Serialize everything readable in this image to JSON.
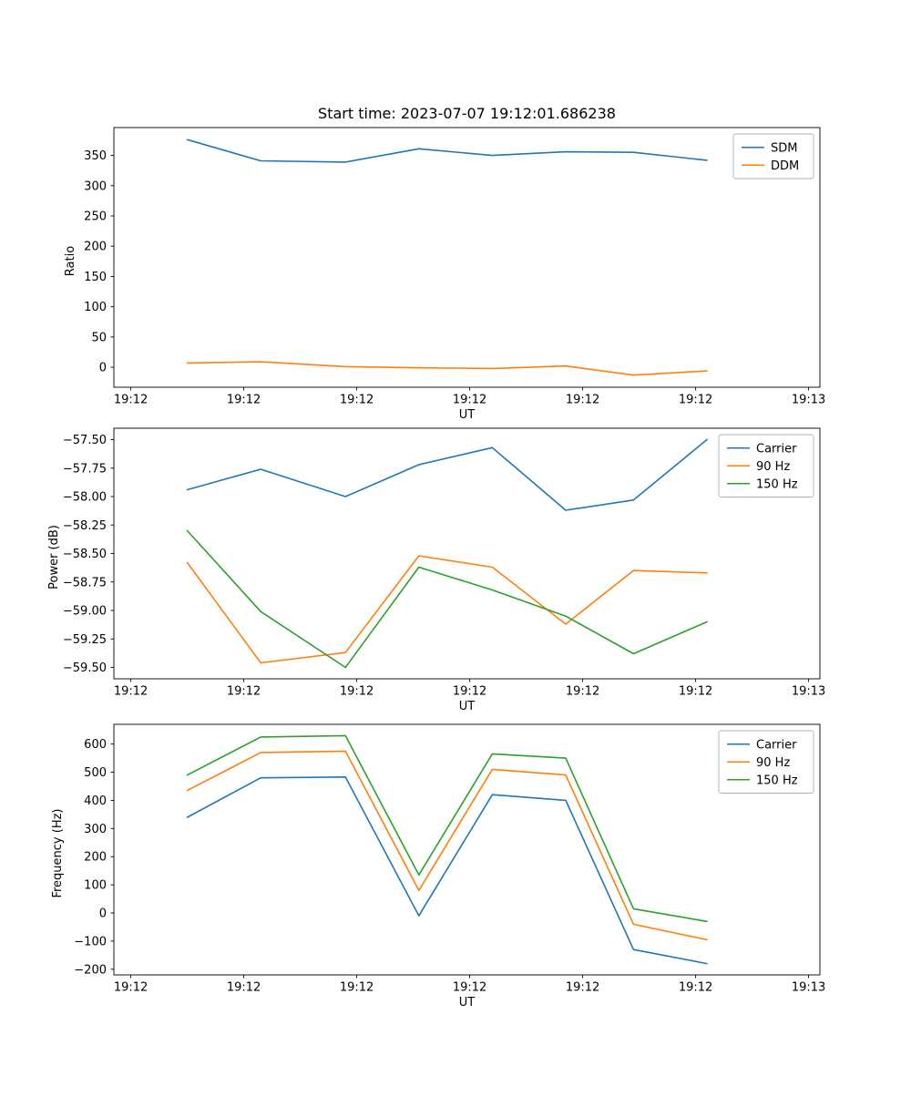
{
  "figure": {
    "background": "#ffffff"
  },
  "chart_data": [
    {
      "type": "line",
      "title": "Start time: 2023-07-07 19:12:01.686238",
      "xlabel": "UT",
      "ylabel": "Ratio",
      "grid": false,
      "legend_position": "upper right",
      "x": [
        5,
        11.5,
        19,
        25.5,
        32,
        38.5,
        44.5,
        51
      ],
      "xlim": [
        -1.5,
        61
      ],
      "xticks": [
        0,
        10,
        20,
        30,
        40,
        50,
        60
      ],
      "xtick_labels": [
        "19:12",
        "19:12",
        "19:12",
        "19:12",
        "19:12",
        "19:12",
        "19:13"
      ],
      "ylim": [
        -33,
        396
      ],
      "yticks": [
        0,
        50,
        100,
        150,
        200,
        250,
        300,
        350
      ],
      "ytick_labels": [
        "0",
        "50",
        "100",
        "150",
        "200",
        "250",
        "300",
        "350"
      ],
      "series": [
        {
          "name": "SDM",
          "color": "#1f77b4",
          "values": [
            376,
            341,
            339,
            361,
            350,
            356,
            355,
            342
          ]
        },
        {
          "name": "DDM",
          "color": "#ff7f0e",
          "values": [
            7,
            9,
            1,
            -1,
            -2,
            2,
            -13,
            -6
          ]
        }
      ]
    },
    {
      "type": "line",
      "title": "",
      "xlabel": "UT",
      "ylabel": "Power (dB)",
      "grid": false,
      "legend_position": "upper right",
      "x": [
        5,
        11.5,
        19,
        25.5,
        32,
        38.5,
        44.5,
        51
      ],
      "xlim": [
        -1.5,
        61
      ],
      "xticks": [
        0,
        10,
        20,
        30,
        40,
        50,
        60
      ],
      "xtick_labels": [
        "19:12",
        "19:12",
        "19:12",
        "19:12",
        "19:12",
        "19:12",
        "19:13"
      ],
      "ylim": [
        -59.6,
        -57.4
      ],
      "yticks": [
        -59.5,
        -59.25,
        -59.0,
        -58.75,
        -58.5,
        -58.25,
        -58.0,
        -57.75,
        -57.5
      ],
      "ytick_labels": [
        "−59.50",
        "−59.25",
        "−59.00",
        "−58.75",
        "−58.50",
        "−58.25",
        "−58.00",
        "−57.75",
        "−57.50"
      ],
      "series": [
        {
          "name": "Carrier",
          "color": "#1f77b4",
          "values": [
            -57.94,
            -57.76,
            -58.0,
            -57.72,
            -57.57,
            -58.12,
            -58.03,
            -57.5
          ]
        },
        {
          "name": "90 Hz",
          "color": "#ff7f0e",
          "values": [
            -58.58,
            -59.46,
            -59.37,
            -58.52,
            -58.62,
            -59.12,
            -58.65,
            -58.67
          ]
        },
        {
          "name": "150 Hz",
          "color": "#2ca02c",
          "values": [
            -58.3,
            -59.01,
            -59.5,
            -58.62,
            -58.82,
            -59.05,
            -59.38,
            -59.1
          ]
        }
      ]
    },
    {
      "type": "line",
      "title": "",
      "xlabel": "UT",
      "ylabel": "Frequency (Hz)",
      "grid": false,
      "legend_position": "upper right",
      "x": [
        5,
        11.5,
        19,
        25.5,
        32,
        38.5,
        44.5,
        51
      ],
      "xlim": [
        -1.5,
        61
      ],
      "xticks": [
        0,
        10,
        20,
        30,
        40,
        50,
        60
      ],
      "xtick_labels": [
        "19:12",
        "19:12",
        "19:12",
        "19:12",
        "19:12",
        "19:12",
        "19:13"
      ],
      "ylim": [
        -220,
        670
      ],
      "yticks": [
        -200,
        -100,
        0,
        100,
        200,
        300,
        400,
        500,
        600
      ],
      "ytick_labels": [
        "−200",
        "−100",
        "0",
        "100",
        "200",
        "300",
        "400",
        "500",
        "600"
      ],
      "series": [
        {
          "name": "Carrier",
          "color": "#1f77b4",
          "values": [
            340,
            480,
            483,
            -10,
            420,
            400,
            -130,
            -180
          ]
        },
        {
          "name": "90 Hz",
          "color": "#ff7f0e",
          "values": [
            435,
            570,
            575,
            80,
            510,
            490,
            -40,
            -95
          ]
        },
        {
          "name": "150 Hz",
          "color": "#2ca02c",
          "values": [
            490,
            625,
            630,
            135,
            565,
            550,
            15,
            -30
          ]
        }
      ]
    }
  ]
}
